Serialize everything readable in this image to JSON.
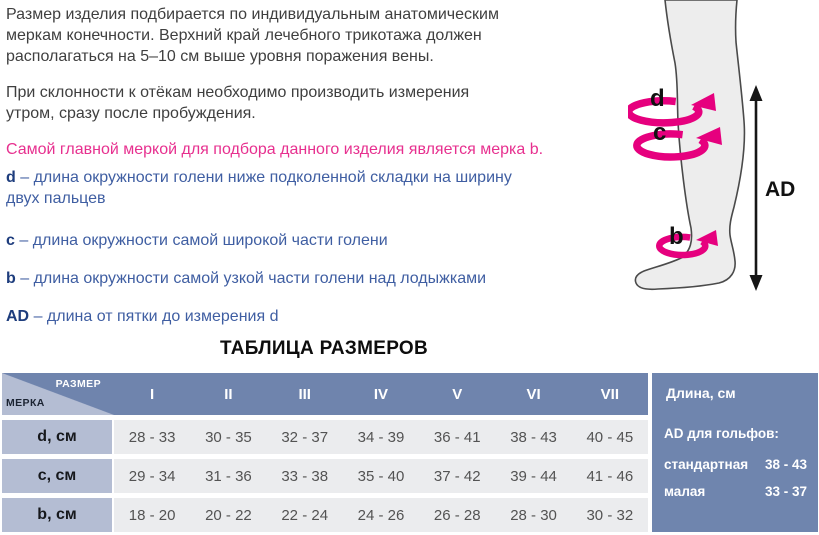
{
  "intro": {
    "paragraph1": "Размер изделия подбирается по индивидуальным анатомическим\nмеркам конечности. Верхний край лечебного трикотажа должен\nрасполагаться на 5–10 см выше уровня поражения вены.",
    "paragraph2": "При склонности к отёкам необходимо производить измерения\nутром, сразу после пробуждения.",
    "highlight": "Самой главной меркой для подбора данного изделия является мерка b."
  },
  "definitions": [
    {
      "letter": "d",
      "text": "– длина окружности голени ниже подколенной складки на ширину\nдвух пальцев"
    },
    {
      "letter": "c",
      "text": "– длина окружности самой широкой части голени"
    },
    {
      "letter": "b",
      "text": "– длина окружности самой узкой части голени над лодыжками"
    },
    {
      "letter": "AD",
      "text": "– длина от пятки до измерения d"
    }
  ],
  "illustration": {
    "label_d": "d",
    "label_c": "c",
    "label_b": "b",
    "label_ad": "AD"
  },
  "size_table": {
    "title": "ТАБЛИЦА РАЗМЕРОВ",
    "corner": {
      "top": "РАЗМЕР",
      "bottom": "МЕРКА"
    },
    "columns": [
      "I",
      "II",
      "III",
      "IV",
      "V",
      "VI",
      "VII"
    ],
    "rows": [
      {
        "label": "d, см",
        "values": [
          "28 - 33",
          "30 - 35",
          "32 - 37",
          "34 - 39",
          "36 - 41",
          "38 - 43",
          "40 - 45"
        ]
      },
      {
        "label": "c, см",
        "values": [
          "29 - 34",
          "31 - 36",
          "33 - 38",
          "35 - 40",
          "37 - 42",
          "39 - 44",
          "41 - 46"
        ]
      },
      {
        "label": "b, см",
        "values": [
          "18 - 20",
          "20 - 22",
          "22 - 24",
          "24 - 26",
          "26 - 28",
          "28 - 30",
          "30 - 32"
        ]
      }
    ]
  },
  "length_panel": {
    "header": "Длина, см",
    "subheader": "AD для гольфов:",
    "rows": [
      {
        "label": "стандартная",
        "value": "38 - 43"
      },
      {
        "label": "малая",
        "value": "33 - 37"
      }
    ]
  },
  "colors": {
    "accent_pink": "#e6007e",
    "text_blue": "#3f5ea2",
    "header_blue": "#6f84ad",
    "label_cell_blue": "#b4bdd3",
    "data_cell_gray": "#ebecee",
    "panel_blue": "#6f85ae"
  }
}
